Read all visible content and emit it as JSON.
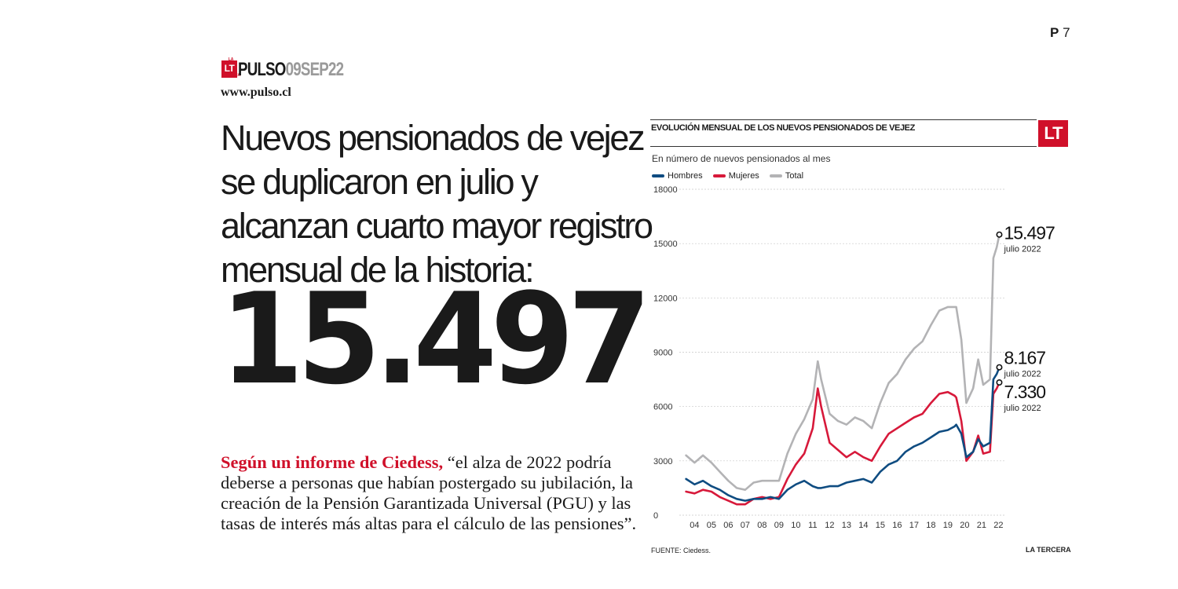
{
  "page": {
    "page_letter": "P",
    "page_number": "7"
  },
  "masthead": {
    "logo": "LT",
    "logo_sub": "LA TERCERA",
    "section": "PULSO",
    "date": "09SEP22",
    "website": "www.pulso.cl"
  },
  "headline": "Nuevos pensionados de vejez se duplicaron en julio y alcanzan cuarto mayor registro mensual de la historia:",
  "big_number": "15.497",
  "body": {
    "lead": "Según un informe de Ciedess,",
    "text": " “el alza de 2022 podría deberse a personas que habían postergado su jubilación, la creación de la Pensión Garantizada Universal (PGU) y las tasas de interés más altas para el cálculo de las pensiones”."
  },
  "chart_header": {
    "title": "EVOLUCIÓN MENSUAL DE LOS NUEVOS PENSIONADOS DE VEJEZ",
    "logo": "LT",
    "subtitle": "En número de nuevos pensionados al mes",
    "source": "FUENTE: Ciedess.",
    "brand": "LA TERCERA"
  },
  "colors": {
    "hombres": "#0f4c81",
    "mujeres": "#d7193a",
    "total": "#b3b3b5",
    "accent": "#d0102a"
  },
  "chart_data": {
    "type": "line",
    "ylim": [
      0,
      18000
    ],
    "yticks": [
      "18000",
      "15000",
      "12000",
      "9000",
      "6000",
      "3000",
      "0"
    ],
    "ytick_values": [
      18000,
      15000,
      12000,
      9000,
      6000,
      3000,
      0
    ],
    "x_labels": [
      "04",
      "05",
      "06",
      "07",
      "08",
      "09",
      "10",
      "11",
      "12",
      "13",
      "14",
      "15",
      "16",
      "17",
      "18",
      "19",
      "20",
      "21",
      "22"
    ],
    "x": [
      2004.0,
      2004.5,
      2005.0,
      2005.5,
      2006.0,
      2006.5,
      2007.0,
      2007.5,
      2008.0,
      2008.5,
      2009.0,
      2009.5,
      2010.0,
      2010.5,
      2011.0,
      2011.5,
      2011.8,
      2012.0,
      2012.5,
      2013.0,
      2013.5,
      2014.0,
      2014.5,
      2015.0,
      2015.5,
      2016.0,
      2016.5,
      2017.0,
      2017.5,
      2018.0,
      2018.5,
      2019.0,
      2019.5,
      2019.9,
      2020.0,
      2020.3,
      2020.6,
      2021.0,
      2021.3,
      2021.6,
      2022.0,
      2022.2,
      2022.4,
      2022.55
    ],
    "series": [
      {
        "name": "Hombres",
        "values": [
          2000,
          1700,
          1900,
          1600,
          1400,
          1100,
          900,
          800,
          900,
          900,
          1000,
          900,
          1400,
          1700,
          1900,
          1600,
          1500,
          1500,
          1600,
          1600,
          1800,
          1900,
          2000,
          1800,
          2400,
          2800,
          3000,
          3500,
          3800,
          4000,
          4300,
          4600,
          4700,
          4900,
          5000,
          4500,
          3200,
          3500,
          4200,
          3800,
          4000,
          7500,
          7800,
          8167
        ]
      },
      {
        "name": "Mujeres",
        "values": [
          1300,
          1200,
          1400,
          1300,
          1000,
          800,
          600,
          600,
          900,
          1000,
          900,
          1000,
          2000,
          2800,
          3400,
          4800,
          7000,
          6000,
          4000,
          3600,
          3200,
          3500,
          3200,
          3000,
          3800,
          4500,
          4800,
          5100,
          5400,
          5600,
          6200,
          6700,
          6800,
          6600,
          6500,
          5200,
          3000,
          3500,
          4400,
          3400,
          3500,
          6700,
          7000,
          7330
        ]
      },
      {
        "name": "Total",
        "values": [
          3300,
          2900,
          3300,
          2900,
          2400,
          1900,
          1500,
          1400,
          1800,
          1900,
          1900,
          1900,
          3400,
          4500,
          5300,
          6400,
          8500,
          7500,
          5600,
          5200,
          5000,
          5400,
          5200,
          4800,
          6200,
          7300,
          7800,
          8600,
          9200,
          9600,
          10500,
          11300,
          11500,
          11500,
          11500,
          9700,
          6200,
          7000,
          8600,
          7200,
          7500,
          14200,
          14800,
          15497
        ]
      }
    ],
    "annotations": [
      {
        "series": "Total",
        "value": "15.497",
        "label": "julio 2022"
      },
      {
        "series": "Hombres",
        "value": "8.167",
        "label": "julio 2022"
      },
      {
        "series": "Mujeres",
        "value": "7.330",
        "label": "julio 2022"
      }
    ],
    "grid": true
  }
}
